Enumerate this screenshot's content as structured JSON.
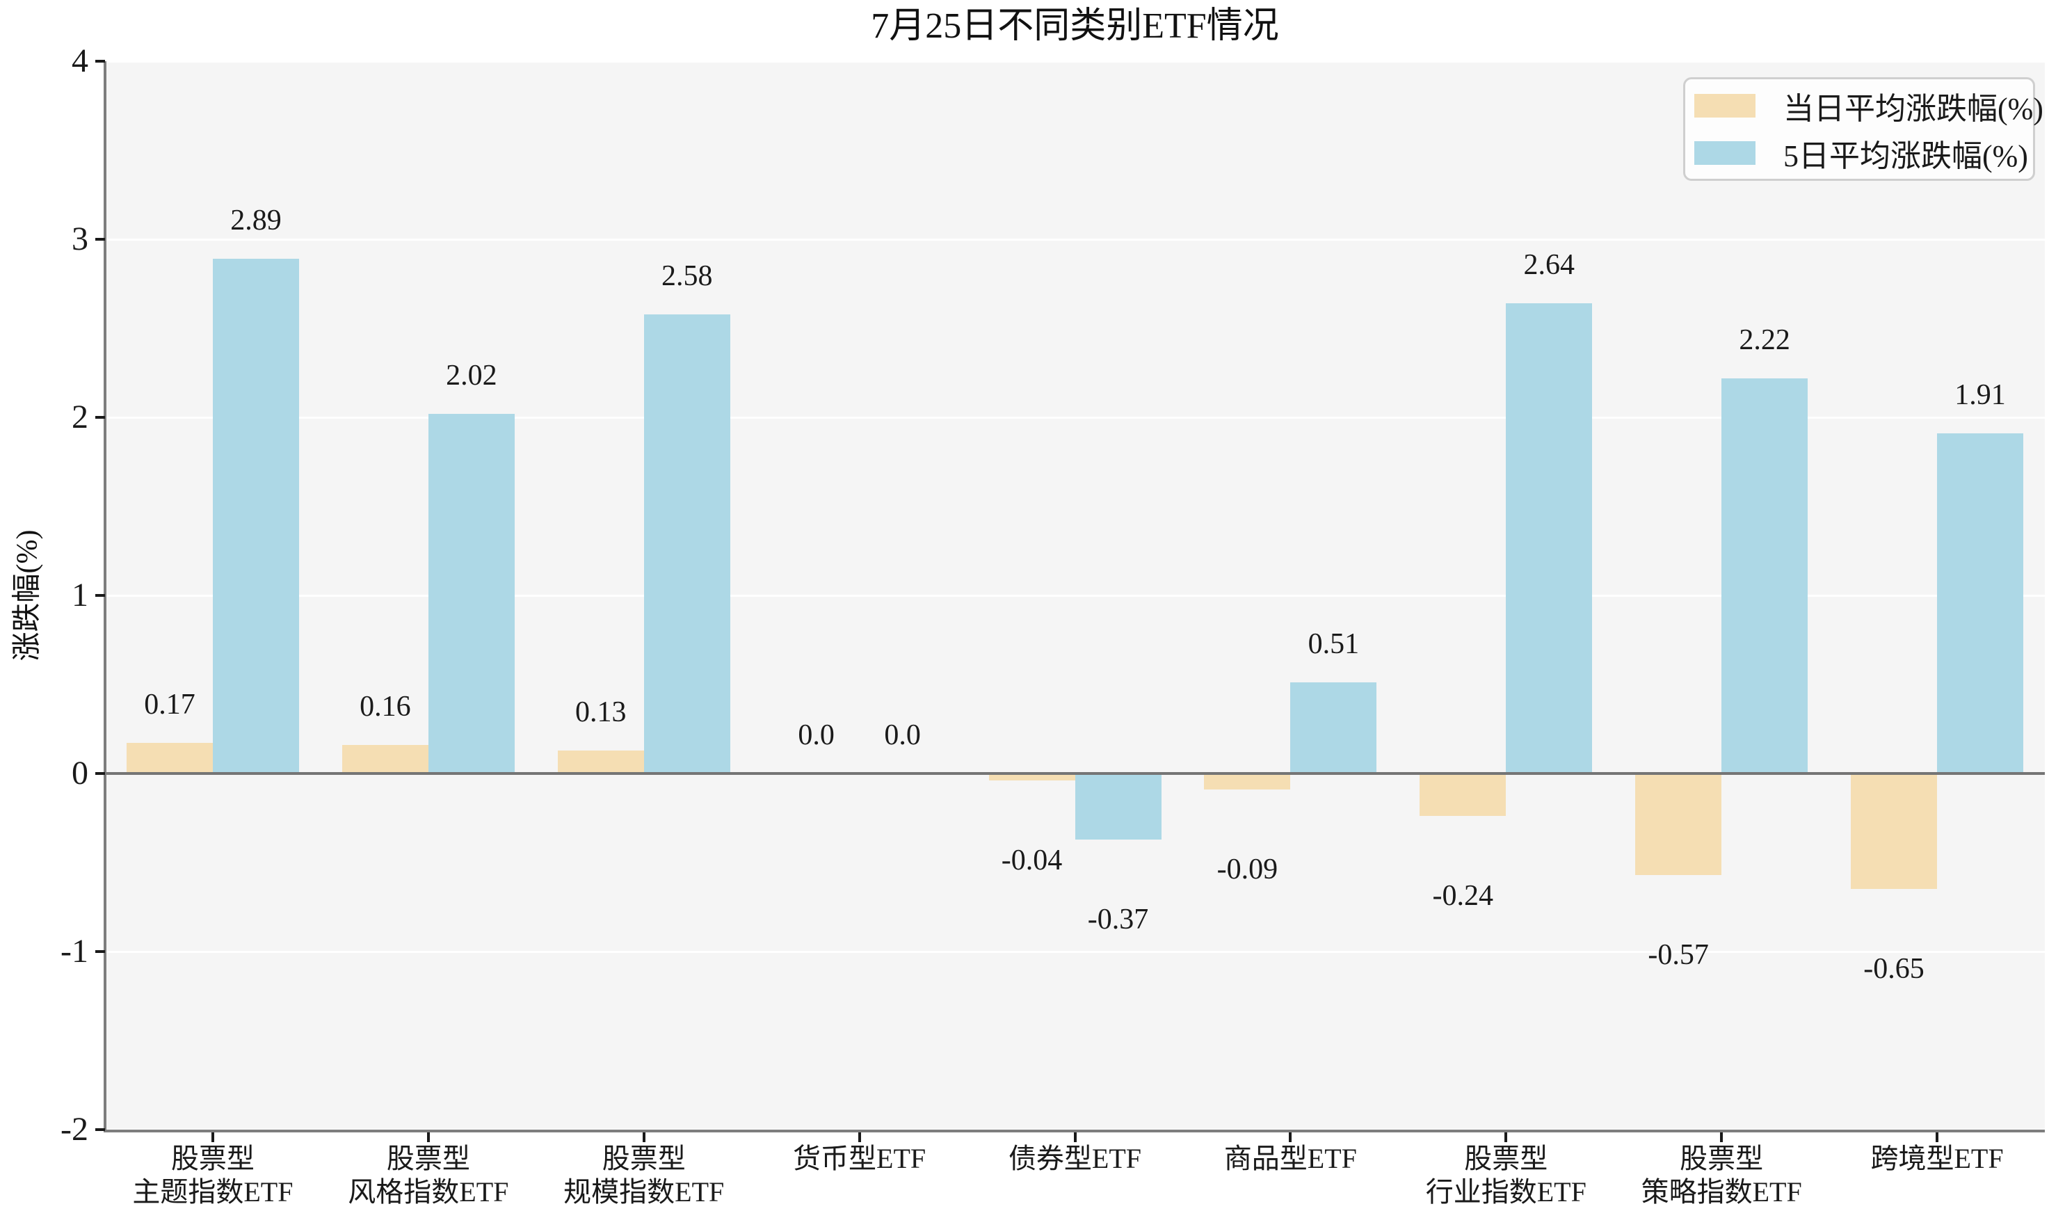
{
  "chart_data": {
    "type": "bar",
    "title": "7月25日不同类别ETF情况",
    "ylabel": "涨跌幅(%)",
    "ylim": [
      -2,
      4
    ],
    "yticks": [
      "4",
      "3",
      "2",
      "1",
      "0",
      "-1",
      "-2"
    ],
    "ytick_values": [
      4,
      3,
      2,
      1,
      0,
      -1,
      -2
    ],
    "grid": true,
    "grid_color": "#ffffff",
    "plot_bg": "#f5f5f5",
    "axis_color": "#7d7d7d",
    "zero_line_color": "#757575",
    "legend_position": "upper right",
    "categories": [
      "股票型\n主题指数ETF",
      "股票型\n风格指数ETF",
      "股票型\n规模指数ETF",
      "货币型ETF",
      "债券型ETF",
      "商品型ETF",
      "股票型\n行业指数ETF",
      "股票型\n策略指数ETF",
      "跨境型ETF"
    ],
    "series": [
      {
        "name": "当日平均涨跌幅(%)",
        "color": "#F5DEB3",
        "values": [
          0.17,
          0.16,
          0.13,
          0.0,
          -0.04,
          -0.09,
          -0.24,
          -0.57,
          -0.65
        ],
        "labels": [
          "0.17",
          "0.16",
          "0.13",
          "0.0",
          "-0.04",
          "-0.09",
          "-0.24",
          "-0.57",
          "-0.65"
        ]
      },
      {
        "name": "5日平均涨跌幅(%)",
        "color": "#ADD8E6",
        "values": [
          2.89,
          2.02,
          2.58,
          0.0,
          -0.37,
          0.51,
          2.64,
          2.22,
          1.91
        ],
        "labels": [
          "2.89",
          "2.02",
          "2.58",
          "0.0",
          "-0.37",
          "0.51",
          "2.64",
          "2.22",
          "1.91"
        ]
      }
    ]
  }
}
